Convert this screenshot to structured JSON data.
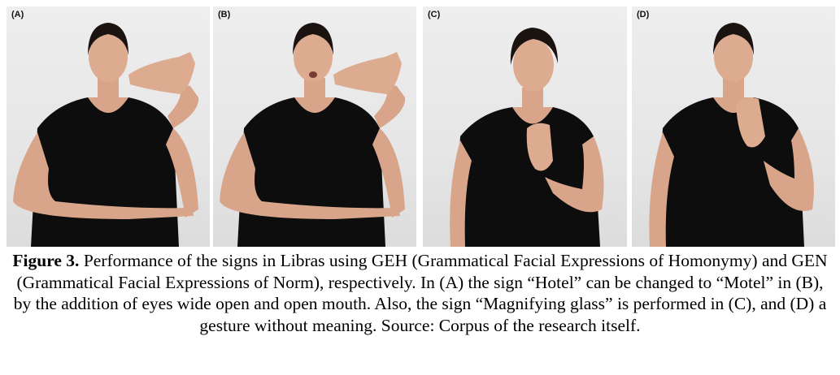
{
  "panels": [
    {
      "id": "A",
      "label": "(A)"
    },
    {
      "id": "B",
      "label": "(B)"
    },
    {
      "id": "C",
      "label": "(C)"
    },
    {
      "id": "D",
      "label": "(D)"
    }
  ],
  "caption": {
    "figure_label": "Figure 3.",
    "text": " Performance of the signs in Libras using GEH (Grammatical Facial Expressions of Homonymy) and GEN (Grammatical Facial Expressions of Norm), respectively. In (A) the sign “Hotel” can be changed to “Motel” in (B), by the addition of eyes wide open and open mouth. Also, the sign “Magnifying glass” is performed in (C), and (D) a gesture without meaning. Source: Corpus of the research itself."
  },
  "colors": {
    "background": "#e9e9e9",
    "shirt": "#0d0d0d",
    "skin": "#d9a58a",
    "hair": "#1a1310"
  }
}
